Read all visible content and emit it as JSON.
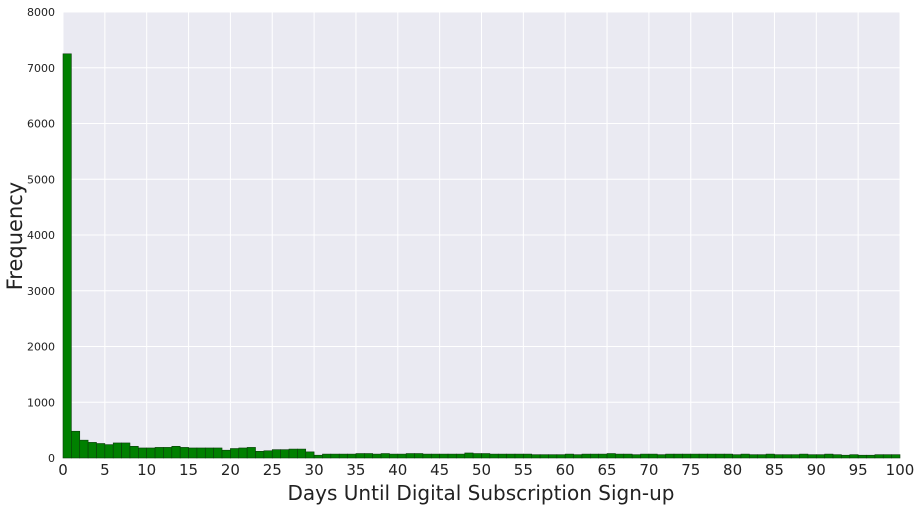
{
  "chart_data": {
    "type": "bar",
    "title": "",
    "xlabel": "Days Until Digital Subscription Sign-up",
    "ylabel": "Frequency",
    "xlim": [
      0,
      100
    ],
    "ylim": [
      0,
      8000
    ],
    "grid": true,
    "bin_width": 1,
    "x_ticks": [
      "0",
      "5",
      "10",
      "15",
      "20",
      "25",
      "30",
      "35",
      "40",
      "45",
      "50",
      "55",
      "60",
      "65",
      "70",
      "75",
      "80",
      "85",
      "90",
      "95",
      "100"
    ],
    "y_ticks": [
      "0",
      "1000",
      "2000",
      "3000",
      "4000",
      "5000",
      "6000",
      "7000",
      "8000"
    ],
    "values": [
      7250,
      480,
      320,
      280,
      260,
      240,
      270,
      270,
      210,
      180,
      180,
      190,
      190,
      210,
      190,
      180,
      180,
      180,
      180,
      140,
      170,
      180,
      190,
      120,
      130,
      150,
      150,
      160,
      160,
      110,
      50,
      70,
      70,
      70,
      70,
      80,
      80,
      70,
      80,
      70,
      70,
      80,
      80,
      70,
      70,
      70,
      70,
      70,
      90,
      80,
      80,
      70,
      70,
      70,
      70,
      70,
      60,
      60,
      60,
      60,
      70,
      60,
      70,
      70,
      70,
      80,
      70,
      70,
      60,
      70,
      70,
      60,
      70,
      70,
      70,
      70,
      70,
      70,
      70,
      70,
      60,
      70,
      60,
      60,
      70,
      60,
      60,
      60,
      70,
      60,
      60,
      70,
      60,
      50,
      60,
      50,
      50,
      60,
      60,
      60,
      60
    ]
  },
  "style": {
    "bar_color": "#008000",
    "bar_edge": "#0b3d0b",
    "plot_bg": "#eaeaf2",
    "grid_color": "#ffffff"
  }
}
